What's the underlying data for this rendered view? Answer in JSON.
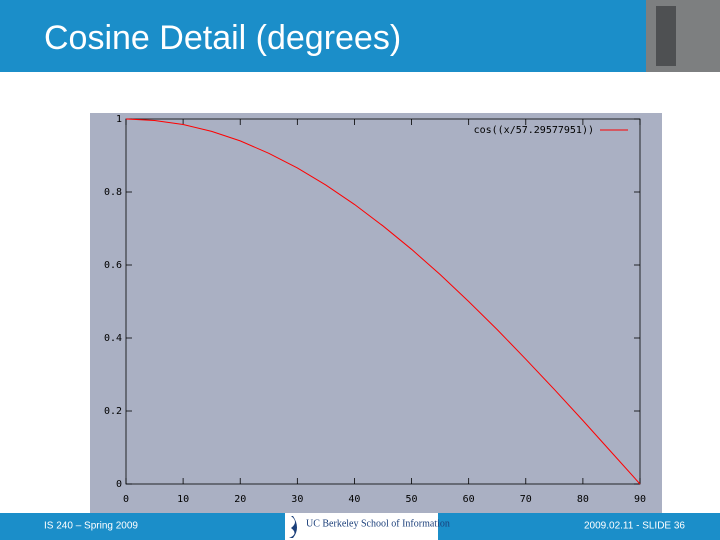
{
  "slide": {
    "title": "Cosine Detail (degrees)",
    "footer_left": "IS 240 – Spring 2009",
    "footer_right": "2009.02.11 - SLIDE 36",
    "logo_text": "UC Berkeley School of Information"
  },
  "chart_data": {
    "type": "line",
    "x": [
      0,
      5,
      10,
      15,
      20,
      25,
      30,
      35,
      40,
      45,
      50,
      55,
      60,
      65,
      70,
      75,
      80,
      85,
      90
    ],
    "series": [
      {
        "name": "cos((x/57.29577951))",
        "color": "#ff0000",
        "values": [
          1,
          0.996,
          0.985,
          0.966,
          0.94,
          0.906,
          0.866,
          0.819,
          0.766,
          0.707,
          0.643,
          0.574,
          0.5,
          0.423,
          0.342,
          0.259,
          0.174,
          0.087,
          0
        ]
      }
    ],
    "xlim": [
      0,
      90
    ],
    "ylim": [
      0,
      1
    ],
    "xticks": [
      0,
      10,
      20,
      30,
      40,
      50,
      60,
      70,
      80,
      90
    ],
    "yticks": [
      0,
      0.2,
      0.4,
      0.6,
      0.8,
      1
    ],
    "grid": false,
    "legend": "top-right"
  }
}
